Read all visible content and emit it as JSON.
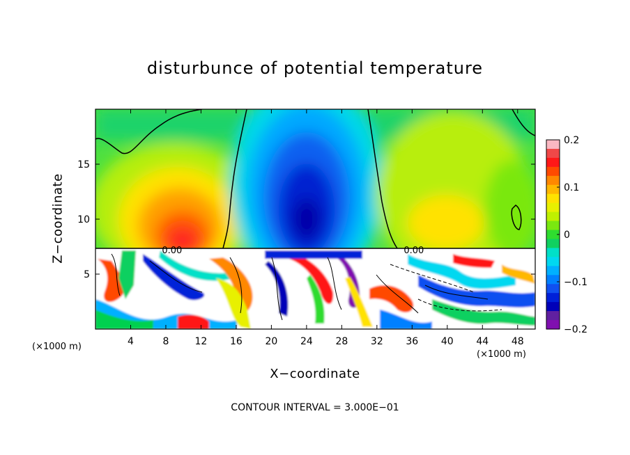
{
  "chart_data": {
    "type": "heatmap",
    "title": "disturbunce of potential temperature",
    "xlabel": "X−coordinate",
    "ylabel": "Z−coordinate",
    "x_unit_left": "(×1000 m)",
    "x_unit_right": "(×1000 m)",
    "xlim": [
      0,
      50
    ],
    "ylim": [
      0,
      20
    ],
    "x_ticks": [
      4,
      8,
      12,
      16,
      20,
      24,
      28,
      32,
      36,
      40,
      44,
      48
    ],
    "x_tick_labels": [
      "4",
      "8",
      "12",
      "16",
      "20",
      "24",
      "28",
      "32",
      "36",
      "40",
      "44",
      "48"
    ],
    "y_ticks": [
      5,
      10,
      15
    ],
    "y_tick_labels": [
      "5",
      "10",
      "15"
    ],
    "contour_labels": [
      {
        "text": "0.00",
        "x": 8.7,
        "z": 7.2
      },
      {
        "text": "0.00",
        "x": 36.2,
        "z": 7.2
      }
    ],
    "colorbar": {
      "min": -0.2,
      "max": 0.2,
      "tick_values": [
        0.2,
        0.1,
        0,
        -0.1,
        -0.2
      ],
      "tick_labels": [
        "0.2",
        "0.1",
        "0",
        "−0.1",
        "−0.2"
      ],
      "colors": [
        "#fab8c2",
        "#f04848",
        "#ff1818",
        "#ff4a00",
        "#ff8800",
        "#ffb800",
        "#ffe200",
        "#e8f000",
        "#bff000",
        "#7ae810",
        "#2fdc2f",
        "#10d060",
        "#00e0c8",
        "#00d8f0",
        "#00b0ff",
        "#0080ff",
        "#1050f0",
        "#0020d8",
        "#0000b8",
        "#6020a0",
        "#8010b0"
      ]
    },
    "regions": [
      {
        "label": "warm anomaly upper-left",
        "x": 10.5,
        "z": 10.5,
        "value": 0.14
      },
      {
        "label": "cold anomaly center",
        "x": 24,
        "z": 11,
        "value": -0.17
      },
      {
        "label": "weak warm upper-right",
        "x": 38,
        "z": 11,
        "value": 0.05
      },
      {
        "label": "near-zero background",
        "x": 44,
        "z": 17,
        "value": 0.01
      },
      {
        "label": "noisy lower boundary layer",
        "x": 25,
        "z": 3.5,
        "value": 0.0
      }
    ],
    "contour_interval_text": "CONTOUR INTERVAL = 3.000E−01"
  }
}
